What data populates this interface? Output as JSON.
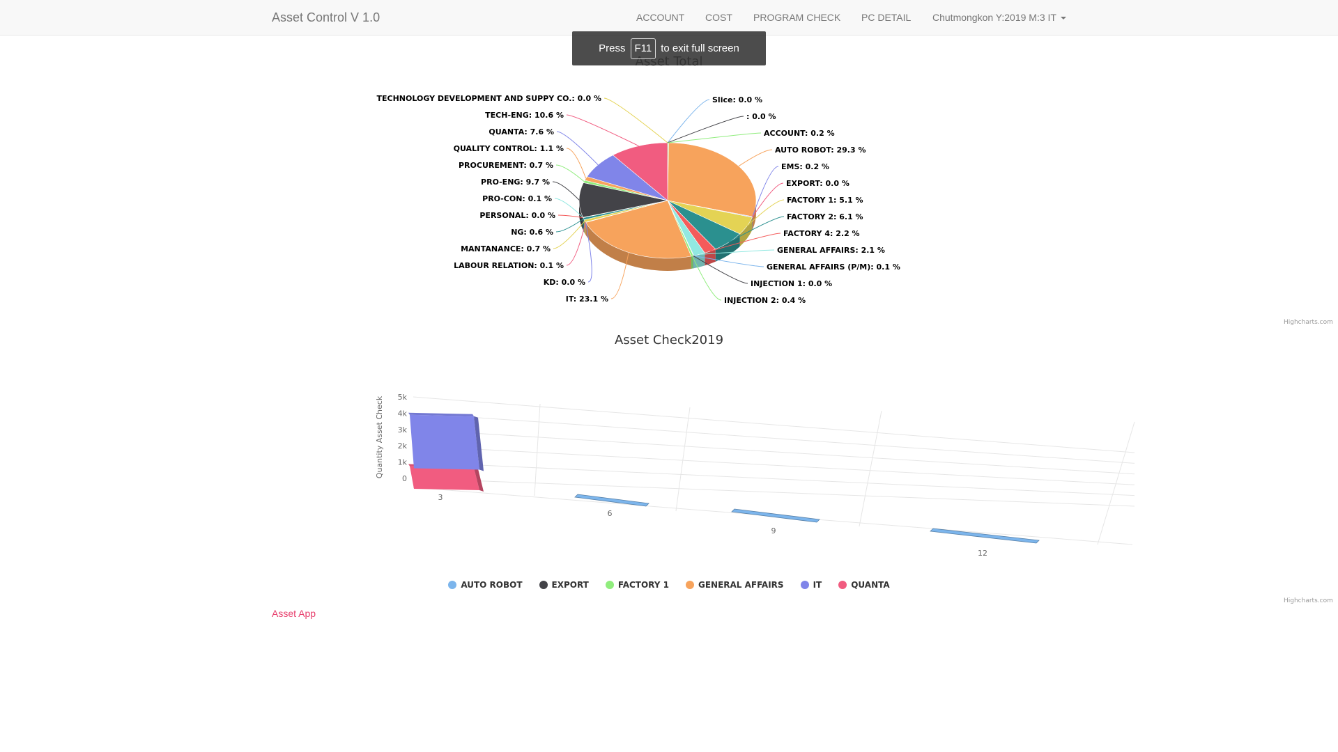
{
  "navbar": {
    "brand": "Asset Control V 1.0",
    "links": [
      "ACCOUNT",
      "COST",
      "PROGRAM CHECK",
      "PC DETAIL"
    ],
    "user_menu": "Chutmongkon Y:2019 M:3 IT"
  },
  "fullscreen_toast": {
    "press": "Press",
    "key": "F11",
    "suffix": "to exit full screen"
  },
  "credits": "Highcharts.com",
  "footer": {
    "link": "Asset App"
  },
  "chart_data": [
    {
      "type": "pie",
      "title": "Asset Total",
      "slices": [
        {
          "name": "Slice",
          "label": "Slice: 0.0 %",
          "value": 0.0,
          "color": "#7cb5ec"
        },
        {
          "name": "",
          "label": ": 0.0 %",
          "value": 0.0,
          "color": "#434348"
        },
        {
          "name": "ACCOUNT",
          "label": "ACCOUNT: 0.2 %",
          "value": 0.2,
          "color": "#90ed7d"
        },
        {
          "name": "AUTO ROBOT",
          "label": "AUTO ROBOT: 29.3 %",
          "value": 29.3,
          "color": "#f7a35c"
        },
        {
          "name": "EMS",
          "label": "EMS: 0.2 %",
          "value": 0.2,
          "color": "#8085e9"
        },
        {
          "name": "EXPORT",
          "label": "EXPORT: 0.0 %",
          "value": 0.0,
          "color": "#f15c80"
        },
        {
          "name": "FACTORY 1",
          "label": "FACTORY 1: 5.1 %",
          "value": 5.1,
          "color": "#e4d354"
        },
        {
          "name": "FACTORY 2",
          "label": "FACTORY 2: 6.1 %",
          "value": 6.1,
          "color": "#2b908f"
        },
        {
          "name": "FACTORY 4",
          "label": "FACTORY 4: 2.2 %",
          "value": 2.2,
          "color": "#f45b5b"
        },
        {
          "name": "GENERAL AFFAIRS",
          "label": "GENERAL AFFAIRS: 2.1 %",
          "value": 2.1,
          "color": "#91e8e1"
        },
        {
          "name": "GENERAL AFFAIRS (P/M)",
          "label": "GENERAL AFFAIRS (P/M): 0.1 %",
          "value": 0.1,
          "color": "#7cb5ec"
        },
        {
          "name": "INJECTION 1",
          "label": "INJECTION 1: 0.0 %",
          "value": 0.0,
          "color": "#434348"
        },
        {
          "name": "INJECTION 2",
          "label": "INJECTION 2: 0.4 %",
          "value": 0.4,
          "color": "#90ed7d"
        },
        {
          "name": "IT",
          "label": "IT: 23.1 %",
          "value": 23.1,
          "color": "#f7a35c"
        },
        {
          "name": "KD",
          "label": "KD: 0.0 %",
          "value": 0.0,
          "color": "#8085e9"
        },
        {
          "name": "LABOUR RELATION",
          "label": "LABOUR RELATION: 0.1 %",
          "value": 0.1,
          "color": "#f15c80"
        },
        {
          "name": "MANTANANCE",
          "label": "MANTANANCE: 0.7 %",
          "value": 0.7,
          "color": "#e4d354"
        },
        {
          "name": "NG",
          "label": "NG: 0.6 %",
          "value": 0.6,
          "color": "#2b908f"
        },
        {
          "name": "PERSONAL",
          "label": "PERSONAL: 0.0 %",
          "value": 0.0,
          "color": "#f45b5b"
        },
        {
          "name": "PRO-CON",
          "label": "PRO-CON: 0.1 %",
          "value": 0.1,
          "color": "#91e8e1"
        },
        {
          "name": "PRO-ENG",
          "label": "PRO-ENG: 9.7 %",
          "value": 9.7,
          "color": "#434348"
        },
        {
          "name": "PROCUREMENT",
          "label": "PROCUREMENT: 0.7 %",
          "value": 0.7,
          "color": "#90ed7d"
        },
        {
          "name": "QUALITY CONTROL",
          "label": "QUALITY CONTROL: 1.1 %",
          "value": 1.1,
          "color": "#f7a35c"
        },
        {
          "name": "QUANTA",
          "label": "QUANTA: 7.6 %",
          "value": 7.6,
          "color": "#8085e9"
        },
        {
          "name": "TECH-ENG",
          "label": "TECH-ENG: 10.6 %",
          "value": 10.6,
          "color": "#f15c80"
        },
        {
          "name": "TECHNOLOGY DEVELOPMENT AND SUPPY CO.",
          "label": "TECHNOLOGY DEVELOPMENT AND SUPPY CO.: 0.0 %",
          "value": 0.0,
          "color": "#e4d354"
        }
      ]
    },
    {
      "type": "bar",
      "title": "Asset Check2019",
      "ylabel": "Quantity Asset Check",
      "ylim": [
        0,
        5000
      ],
      "y_ticks": [
        "0",
        "1k",
        "2k",
        "3k",
        "4k",
        "5k"
      ],
      "categories": [
        "3",
        "6",
        "9",
        "12"
      ],
      "stacked": true,
      "series": [
        {
          "name": "AUTO ROBOT",
          "color": "#7cb5ec",
          "values": [
            0,
            0,
            0,
            0
          ]
        },
        {
          "name": "EXPORT",
          "color": "#434348",
          "values": [
            0,
            0,
            0,
            0
          ]
        },
        {
          "name": "FACTORY 1",
          "color": "#90ed7d",
          "values": [
            0,
            0,
            0,
            0
          ]
        },
        {
          "name": "GENERAL AFFAIRS",
          "color": "#f7a35c",
          "values": [
            0,
            0,
            0,
            0
          ]
        },
        {
          "name": "IT",
          "color": "#8085e9",
          "values": [
            3000,
            0,
            0,
            0
          ]
        },
        {
          "name": "QUANTA",
          "color": "#f15c80",
          "values": [
            1200,
            0,
            0,
            0
          ]
        }
      ],
      "legend": "bottom-center"
    }
  ]
}
